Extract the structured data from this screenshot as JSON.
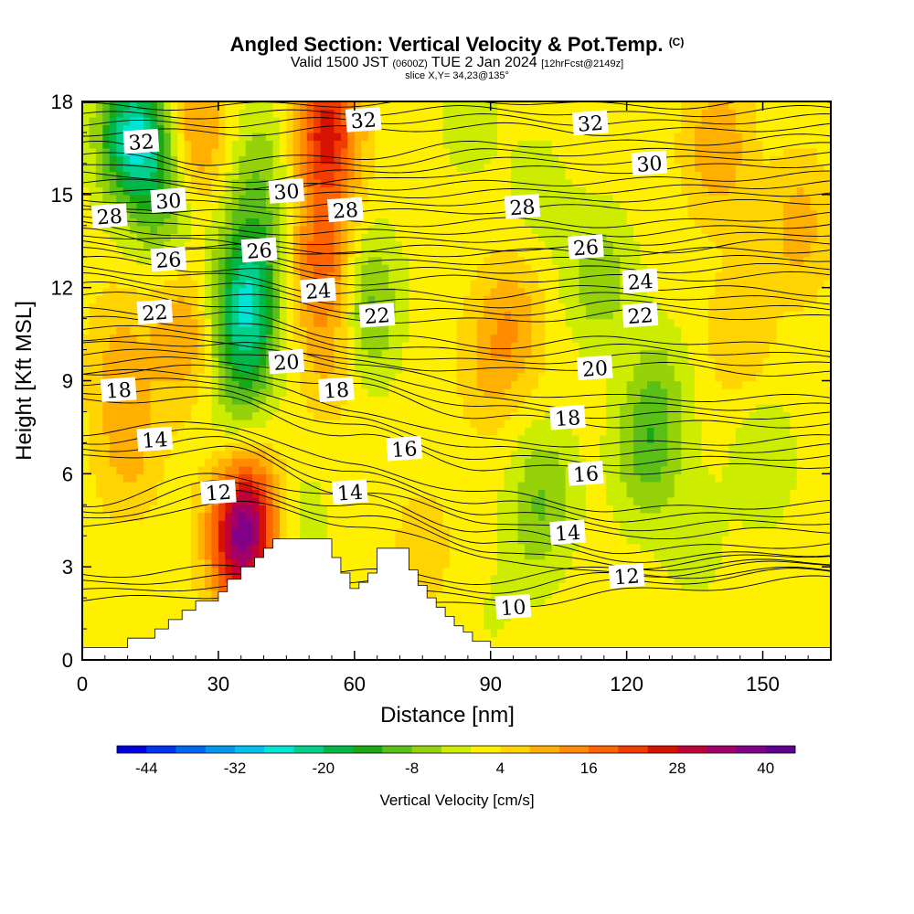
{
  "header": {
    "title": "Angled Section: Vertical Velocity & Pot.Temp.",
    "copyright": "(C)",
    "valid_prefix": "Valid 1500 JST",
    "valid_utc": "(0600Z)",
    "valid_date": "TUE 2 Jan 2024",
    "forecast": "[12hrFcst@2149z]",
    "slice": "slice X,Y= 34,23@135°"
  },
  "chart_data": {
    "type": "heatmap",
    "xlabel": "Distance [nm]",
    "ylabel": "Height [Kft MSL]",
    "xlim": [
      0,
      165
    ],
    "ylim": [
      0,
      18
    ],
    "x_ticks": [
      "0",
      "30",
      "60",
      "90",
      "120",
      "150"
    ],
    "y_ticks": [
      "0",
      "3",
      "6",
      "9",
      "12",
      "15",
      "18"
    ],
    "colorbar": {
      "title": "Vertical Velocity [cm/s]",
      "tick_labels": [
        "-44",
        "-32",
        "-20",
        "-8",
        "4",
        "16",
        "28",
        "40"
      ],
      "tick_values": [
        -44,
        -32,
        -20,
        -8,
        4,
        16,
        28,
        40
      ],
      "range": [
        -48,
        44
      ],
      "step": 4,
      "colors": [
        "#0000e0",
        "#0033ee",
        "#0066f2",
        "#0099ee",
        "#00c2ee",
        "#00e4d6",
        "#00d08a",
        "#00b84a",
        "#1aa814",
        "#5ac018",
        "#96d20a",
        "#ccec00",
        "#fff000",
        "#ffd400",
        "#ffb000",
        "#ff8c00",
        "#ff6400",
        "#f03c00",
        "#d81200",
        "#c00038",
        "#a00068",
        "#800088",
        "#600090"
      ]
    },
    "terrain_profile": {
      "x": [
        0,
        10,
        16,
        19,
        22,
        25,
        30,
        32,
        35,
        38,
        40,
        42,
        44,
        55,
        57,
        59,
        61,
        63,
        65,
        70,
        72,
        74,
        76,
        78,
        80,
        82,
        84,
        86,
        90,
        165
      ],
      "y": [
        0.4,
        0.7,
        1.0,
        1.3,
        1.6,
        1.9,
        2.2,
        2.6,
        3.0,
        3.3,
        3.6,
        3.9,
        3.9,
        3.3,
        2.8,
        2.3,
        2.5,
        2.8,
        3.6,
        3.6,
        2.9,
        2.4,
        2.0,
        1.7,
        1.4,
        1.1,
        0.9,
        0.6,
        0.4,
        0.4
      ]
    },
    "velocity_features": [
      {
        "x": 10,
        "y": 17.0,
        "value": -20
      },
      {
        "x": 15,
        "y": 16.5,
        "value": -12
      },
      {
        "x": 18,
        "y": 14.5,
        "value": -8
      },
      {
        "x": 36,
        "y": 11.0,
        "value": -20
      },
      {
        "x": 37,
        "y": 13.0,
        "value": -12
      },
      {
        "x": 39,
        "y": 16.0,
        "value": -8
      },
      {
        "x": 35,
        "y": 8.5,
        "value": -8
      },
      {
        "x": 63,
        "y": 12.0,
        "value": -8
      },
      {
        "x": 62,
        "y": 10.5,
        "value": -6
      },
      {
        "x": 85,
        "y": 17.5,
        "value": -4
      },
      {
        "x": 100,
        "y": 15.0,
        "value": -4
      },
      {
        "x": 102,
        "y": 5.5,
        "value": -8
      },
      {
        "x": 99,
        "y": 4.0,
        "value": -4
      },
      {
        "x": 112,
        "y": 12.5,
        "value": -6
      },
      {
        "x": 117,
        "y": 12.0,
        "value": -4
      },
      {
        "x": 124,
        "y": 6.5,
        "value": -10
      },
      {
        "x": 127,
        "y": 8.5,
        "value": -8
      },
      {
        "x": 135,
        "y": 4.0,
        "value": -4
      },
      {
        "x": 150,
        "y": 6.5,
        "value": -6
      },
      {
        "x": 48,
        "y": 4.5,
        "value": -4
      },
      {
        "x": 90,
        "y": 1.2,
        "value": -2
      },
      {
        "x": 54,
        "y": 17.0,
        "value": 24
      },
      {
        "x": 53,
        "y": 13.0,
        "value": 16
      },
      {
        "x": 55,
        "y": 10.0,
        "value": 8
      },
      {
        "x": 25,
        "y": 17.0,
        "value": 12
      },
      {
        "x": 22,
        "y": 10.5,
        "value": 10
      },
      {
        "x": 10,
        "y": 7.0,
        "value": 8
      },
      {
        "x": 8,
        "y": 10.0,
        "value": 6
      },
      {
        "x": 35,
        "y": 3.8,
        "value": 28
      },
      {
        "x": 37,
        "y": 5.0,
        "value": 12
      },
      {
        "x": 95,
        "y": 11.0,
        "value": 8
      },
      {
        "x": 90,
        "y": 9.5,
        "value": 6
      },
      {
        "x": 140,
        "y": 16.5,
        "value": 10
      },
      {
        "x": 158,
        "y": 14.0,
        "value": 8
      },
      {
        "x": 145,
        "y": 10.5,
        "value": 6
      },
      {
        "x": 75,
        "y": 3.5,
        "value": 4
      }
    ],
    "potential_temperature_contours": [
      {
        "level": 10,
        "x": [
          0,
          30,
          60,
          90,
          120,
          165
        ],
        "y": [
          1.9,
          2.1,
          2.0,
          1.7,
          2.2,
          2.6
        ]
      },
      {
        "level": 12,
        "x": [
          0,
          30,
          60,
          90,
          120,
          165
        ],
        "y": [
          4.2,
          5.1,
          4.4,
          3.3,
          2.7,
          2.9
        ]
      },
      {
        "level": 14,
        "x": [
          0,
          30,
          60,
          90,
          120,
          165
        ],
        "y": [
          6.5,
          6.8,
          5.4,
          4.5,
          4.0,
          4.2
        ]
      },
      {
        "level": 16,
        "x": [
          0,
          30,
          60,
          90,
          120,
          165
        ],
        "y": [
          8.4,
          8.4,
          7.2,
          6.2,
          6.1,
          6.3
        ]
      },
      {
        "level": 18,
        "x": [
          0,
          30,
          60,
          90,
          120,
          165
        ],
        "y": [
          9.3,
          9.4,
          8.8,
          7.8,
          7.6,
          7.6
        ]
      },
      {
        "level": 20,
        "x": [
          0,
          30,
          60,
          90,
          120,
          165
        ],
        "y": [
          10.4,
          10.3,
          9.6,
          9.3,
          9.5,
          9.2
        ]
      },
      {
        "level": 22,
        "x": [
          0,
          30,
          60,
          90,
          120,
          165
        ],
        "y": [
          11.8,
          11.5,
          11.0,
          10.9,
          11.2,
          11.0
        ]
      },
      {
        "level": 24,
        "x": [
          0,
          30,
          60,
          90,
          120,
          165
        ],
        "y": [
          12.9,
          12.6,
          12.2,
          12.3,
          12.3,
          12.4
        ]
      },
      {
        "level": 26,
        "x": [
          0,
          30,
          60,
          90,
          120,
          165
        ],
        "y": [
          13.8,
          13.3,
          13.2,
          13.3,
          13.2,
          13.5
        ]
      },
      {
        "level": 28,
        "x": [
          0,
          30,
          60,
          90,
          120,
          165
        ],
        "y": [
          14.6,
          14.4,
          14.4,
          14.5,
          14.6,
          14.8
        ]
      },
      {
        "level": 30,
        "x": [
          0,
          30,
          60,
          90,
          120,
          165
        ],
        "y": [
          15.8,
          15.2,
          15.4,
          15.8,
          15.8,
          16.0
        ]
      },
      {
        "level": 32,
        "x": [
          0,
          30,
          60,
          90,
          120,
          165
        ],
        "y": [
          17.0,
          17.0,
          17.1,
          17.2,
          17.0,
          17.2
        ]
      }
    ],
    "contour_labels": [
      {
        "text": "32",
        "x": 13,
        "y": 16.7
      },
      {
        "text": "32",
        "x": 62,
        "y": 17.4
      },
      {
        "text": "32",
        "x": 112,
        "y": 17.3
      },
      {
        "text": "30",
        "x": 19,
        "y": 14.8
      },
      {
        "text": "30",
        "x": 45,
        "y": 15.1
      },
      {
        "text": "30",
        "x": 125,
        "y": 16.0
      },
      {
        "text": "28",
        "x": 6,
        "y": 14.3
      },
      {
        "text": "28",
        "x": 58,
        "y": 14.5
      },
      {
        "text": "28",
        "x": 97,
        "y": 14.6
      },
      {
        "text": "26",
        "x": 19,
        "y": 12.9
      },
      {
        "text": "26",
        "x": 39,
        "y": 13.2
      },
      {
        "text": "26",
        "x": 111,
        "y": 13.3
      },
      {
        "text": "24",
        "x": 52,
        "y": 11.9
      },
      {
        "text": "24",
        "x": 123,
        "y": 12.2
      },
      {
        "text": "22",
        "x": 16,
        "y": 11.2
      },
      {
        "text": "22",
        "x": 65,
        "y": 11.1
      },
      {
        "text": "22",
        "x": 123,
        "y": 11.1
      },
      {
        "text": "20",
        "x": 45,
        "y": 9.6
      },
      {
        "text": "20",
        "x": 113,
        "y": 9.4
      },
      {
        "text": "18",
        "x": 8,
        "y": 8.7
      },
      {
        "text": "18",
        "x": 56,
        "y": 8.7
      },
      {
        "text": "18",
        "x": 107,
        "y": 7.8
      },
      {
        "text": "16",
        "x": 71,
        "y": 6.8
      },
      {
        "text": "16",
        "x": 111,
        "y": 6.0
      },
      {
        "text": "14",
        "x": 16,
        "y": 7.1
      },
      {
        "text": "14",
        "x": 59,
        "y": 5.4
      },
      {
        "text": "14",
        "x": 107,
        "y": 4.1
      },
      {
        "text": "12",
        "x": 30,
        "y": 5.4
      },
      {
        "text": "12",
        "x": 120,
        "y": 2.7
      },
      {
        "text": "10",
        "x": 95,
        "y": 1.7
      }
    ]
  }
}
